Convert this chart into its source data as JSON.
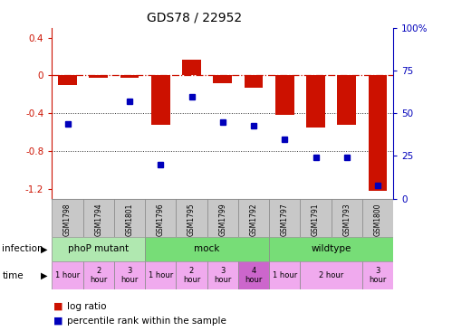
{
  "title": "GDS78 / 22952",
  "samples": [
    "GSM1798",
    "GSM1794",
    "GSM1801",
    "GSM1796",
    "GSM1795",
    "GSM1799",
    "GSM1792",
    "GSM1797",
    "GSM1791",
    "GSM1793",
    "GSM1800"
  ],
  "log_ratio": [
    -0.1,
    -0.02,
    -0.02,
    -0.52,
    0.17,
    -0.08,
    -0.13,
    -0.42,
    -0.55,
    -0.52,
    -1.22
  ],
  "percentile": [
    44,
    null,
    57,
    20,
    60,
    45,
    43,
    35,
    24,
    24,
    8
  ],
  "ylim_left": [
    -1.3,
    0.5
  ],
  "ylim_right": [
    0,
    100
  ],
  "left_ticks": [
    0.4,
    0.0,
    -0.4,
    -0.8,
    -1.2
  ],
  "right_ticks": [
    100,
    75,
    50,
    25,
    0
  ],
  "hline_y": 0.0,
  "dotted_lines": [
    -0.4,
    -0.8
  ],
  "infection_groups": [
    {
      "label": "phoP mutant",
      "start": 0,
      "end": 3,
      "color": "#b0e8b0"
    },
    {
      "label": "mock",
      "start": 3,
      "end": 7,
      "color": "#77dd77"
    },
    {
      "label": "wildtype",
      "start": 7,
      "end": 11,
      "color": "#77dd77"
    }
  ],
  "time_groups": [
    {
      "label": "1 hour",
      "start": 0,
      "end": 1,
      "color": "#f0aaee"
    },
    {
      "label": "2\nhour",
      "start": 1,
      "end": 2,
      "color": "#f0aaee"
    },
    {
      "label": "3\nhour",
      "start": 2,
      "end": 3,
      "color": "#f0aaee"
    },
    {
      "label": "1 hour",
      "start": 3,
      "end": 4,
      "color": "#f0aaee"
    },
    {
      "label": "2\nhour",
      "start": 4,
      "end": 5,
      "color": "#f0aaee"
    },
    {
      "label": "3\nhour",
      "start": 5,
      "end": 6,
      "color": "#f0aaee"
    },
    {
      "label": "4\nhour",
      "start": 6,
      "end": 7,
      "color": "#cc66cc"
    },
    {
      "label": "1 hour",
      "start": 7,
      "end": 8,
      "color": "#f0aaee"
    },
    {
      "label": "2 hour",
      "start": 8,
      "end": 10,
      "color": "#f0aaee"
    },
    {
      "label": "3\nhour",
      "start": 10,
      "end": 11,
      "color": "#f0aaee"
    }
  ],
  "bar_color": "#cc1100",
  "dot_color": "#0000bb",
  "grid_color": "#333333",
  "hline_color": "#cc1100",
  "bg_color": "#ffffff",
  "border_color": "#888888",
  "sample_bg": "#c8c8c8"
}
